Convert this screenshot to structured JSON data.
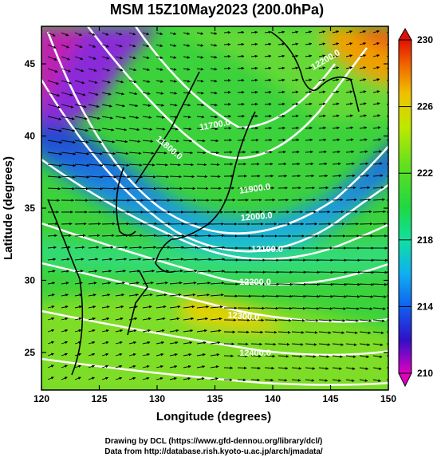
{
  "title": "MSM 15Z10May2023 (200.0hPa)",
  "x_axis": {
    "label": "Longitude (degrees)",
    "ticks": [
      "120",
      "125",
      "130",
      "135",
      "140",
      "145",
      "150"
    ],
    "range": [
      120,
      150
    ]
  },
  "y_axis": {
    "label": "Latitude  (degrees)",
    "ticks": [
      "25",
      "30",
      "35",
      "40",
      "45"
    ],
    "range": [
      22.4,
      47.6
    ]
  },
  "colorbar": {
    "ticks": [
      "210",
      "214",
      "218",
      "222",
      "226",
      "230"
    ],
    "range": [
      210,
      230
    ]
  },
  "contour_labels": [
    "11700.0",
    "11800.0",
    "11900.0",
    "12000.0",
    "12100.0",
    "12200.0",
    "12300.0",
    "12400.0"
  ],
  "credits": {
    "line1": "Drawing by DCL (https://www.gfd-dennou.org/library/dcl/)",
    "line2": "Data from http://database.rish.kyoto-u.ac.jp/arch/jmadata/"
  }
}
